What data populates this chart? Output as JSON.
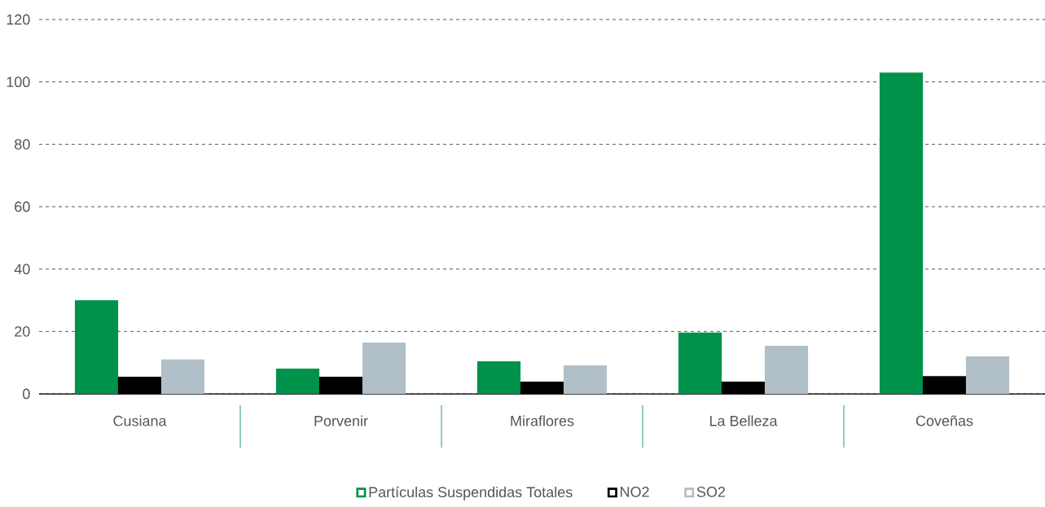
{
  "chart_data": {
    "type": "bar",
    "categories": [
      "Cusiana",
      "Porvenir",
      "Miraflores",
      "La Belleza",
      "Coveñas"
    ],
    "series": [
      {
        "name": "Partículas Suspendidas Totales",
        "color": "#00924a",
        "values": [
          30.0,
          8.1,
          10.4,
          19.6,
          103.0
        ]
      },
      {
        "name": "NO2",
        "color": "#000000",
        "values": [
          5.5,
          5.5,
          3.9,
          3.9,
          5.7
        ]
      },
      {
        "name": "SO2",
        "color": "#b1bfc8",
        "values": [
          11.0,
          16.4,
          9.1,
          15.4,
          12.0
        ]
      }
    ],
    "ylim": [
      0,
      120
    ],
    "yticks": [
      0,
      20,
      40,
      60,
      80,
      100,
      120
    ],
    "grid": "y",
    "legend": "bottom"
  }
}
